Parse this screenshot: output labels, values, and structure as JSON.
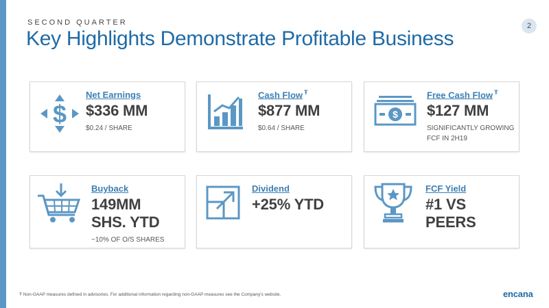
{
  "slide": {
    "eyebrow": "SECOND QUARTER",
    "title": "Key Highlights Demonstrate Profitable Business",
    "page_number": "2",
    "footnote": "Ŧ Non-GAAP measures defined in advisories. For additional information regarding non-GAAP measures see the Company's website.",
    "logo": "encana"
  },
  "colors": {
    "accent": "#1f6aa5",
    "icon": "#5b97c4",
    "left_bar": "#5b97c4"
  },
  "cards": {
    "net_earnings": {
      "icon": "dollar-arrows-icon",
      "label": "Net Earnings",
      "value": "$336 MM",
      "sub": "$0.24 / SHARE"
    },
    "cash_flow": {
      "icon": "bar-chart-icon",
      "label": "Cash Flow",
      "footnote_mark": "Ŧ",
      "value": "$877 MM",
      "sub": "$0.64 / SHARE"
    },
    "free_cash_flow": {
      "icon": "cash-bill-icon",
      "label": "Free Cash Flow",
      "footnote_mark": "Ŧ",
      "value": "$127 MM",
      "sub_1": "SIGNIFICANTLY GROWING",
      "sub_2": "FCF IN 2H19"
    },
    "buyback": {
      "icon": "shopping-cart-icon",
      "label": "Buyback",
      "value_1": "149MM",
      "value_2": "SHS. YTD",
      "sub": "~10% OF O/S SHARES"
    },
    "dividend": {
      "icon": "expand-arrow-icon",
      "label": "Dividend",
      "value": "+25% YTD"
    },
    "fcf_yield": {
      "icon": "trophy-icon",
      "label": "FCF Yield",
      "value": "#1 VS PEERS"
    }
  }
}
